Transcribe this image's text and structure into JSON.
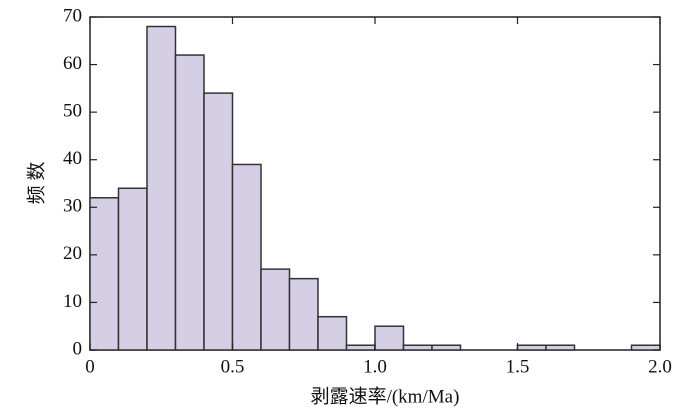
{
  "chart_data": {
    "type": "histogram",
    "x_label": "剥露速率/(km/Ma)",
    "y_label": "频 数",
    "bins": [
      0,
      0.1,
      0.2,
      0.3,
      0.4,
      0.5,
      0.6,
      0.7,
      0.8,
      0.9,
      1.0,
      1.1,
      1.2,
      1.3,
      1.4,
      1.5,
      1.6,
      1.7,
      1.8,
      1.9,
      2.0
    ],
    "values": [
      32,
      34,
      68,
      62,
      54,
      39,
      17,
      15,
      7,
      1,
      5,
      1,
      1,
      0,
      0,
      1,
      1,
      0,
      0,
      1
    ],
    "color": "#d5cfe6",
    "xlim": [
      0,
      2.0
    ],
    "xticks": [
      0,
      0.5,
      {
        "value": 1.0,
        "label": "1.0"
      },
      1.5,
      {
        "value": 2.0,
        "label": "2.0"
      }
    ],
    "ylim": [
      0,
      70
    ],
    "yticks": [
      0,
      10,
      20,
      30,
      40,
      50,
      60,
      70
    ]
  }
}
